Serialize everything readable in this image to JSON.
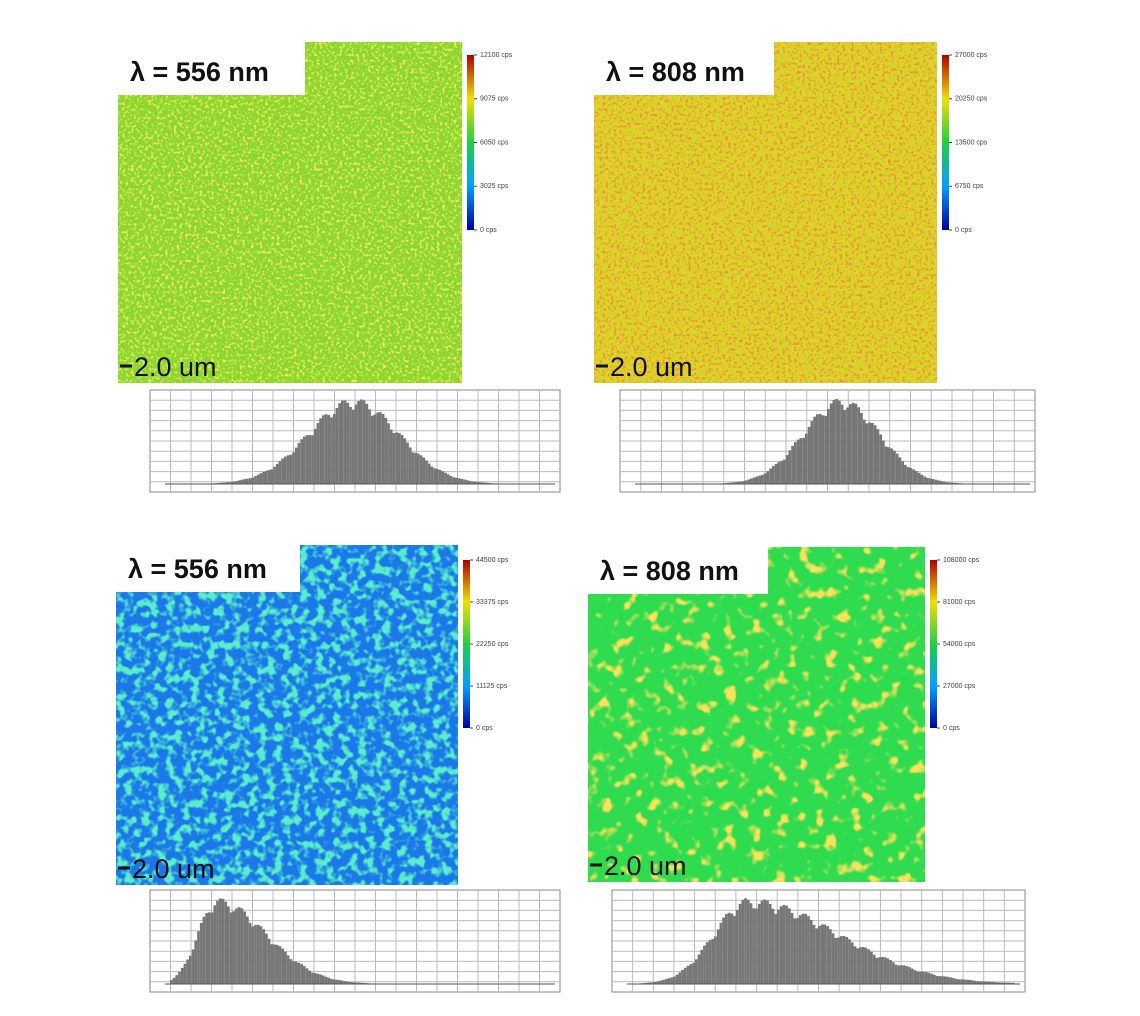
{
  "panels": [
    {
      "label": "λ = 556 nm",
      "scale": "2.0 um",
      "colorbar": [
        "12100 cps",
        "9075 cps",
        "6050 cps",
        "3025 cps",
        "0 cps"
      ]
    },
    {
      "label": "λ = 808 nm",
      "scale": "2.0 um",
      "colorbar": [
        "27000 cps",
        "20250 cps",
        "13500 cps",
        "6750 cps",
        "0 cps"
      ]
    },
    {
      "label": "λ = 556 nm",
      "scale": "2.0 um",
      "colorbar": [
        "44500 cps",
        "33375 cps",
        "22250 cps",
        "11125 cps",
        "0 cps"
      ]
    },
    {
      "label": "λ = 808 nm",
      "scale": "2.0 um",
      "colorbar": [
        "108000 cps",
        "81000 cps",
        "54000 cps",
        "27000 cps",
        "0 cps"
      ]
    }
  ]
}
